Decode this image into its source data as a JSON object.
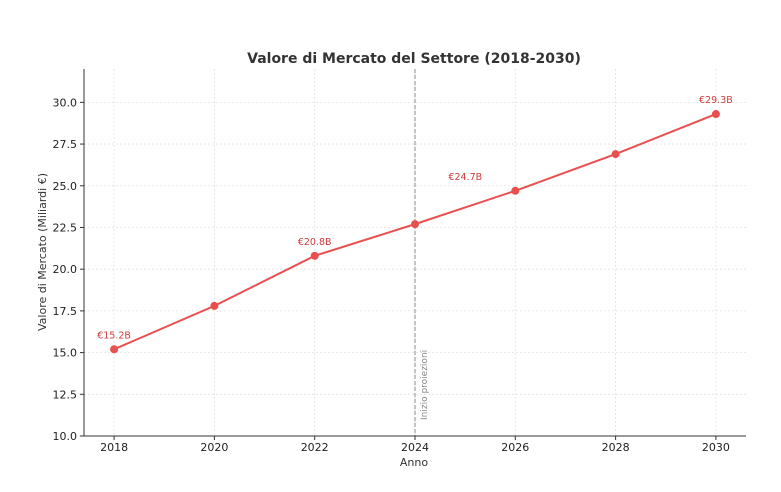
{
  "chart_data": {
    "type": "line",
    "title": "Valore di Mercato del Settore (2018-2030)",
    "xlabel": "Anno",
    "ylabel": "Valore di Mercato (Miliardi €)",
    "x": [
      2018,
      2020,
      2022,
      2024,
      2026,
      2028,
      2030
    ],
    "series": [
      {
        "values": [
          15.2,
          17.8,
          20.8,
          22.7,
          24.7,
          26.9,
          29.3
        ],
        "color": "#e8504f"
      }
    ],
    "xlim": [
      2017.4,
      2030.6
    ],
    "ylim": [
      10.0,
      32.0
    ],
    "x_ticks": [
      "2018",
      "2020",
      "2022",
      "2024",
      "2026",
      "2028",
      "2030"
    ],
    "y_ticks": [
      "10.0",
      "12.5",
      "15.0",
      "17.5",
      "20.0",
      "22.5",
      "25.0",
      "27.5",
      "30.0"
    ],
    "data_labels": [
      {
        "x": 2018,
        "y": 15.2,
        "text": "€15.2B"
      },
      {
        "x": 2022,
        "y": 20.8,
        "text": "€20.8B"
      },
      {
        "x": 2026,
        "y": 24.7,
        "text": "€24.7B"
      },
      {
        "x": 2030,
        "y": 29.3,
        "text": "€29.3B"
      }
    ],
    "annotations": [
      {
        "x": 2024,
        "text": "Inizio proiezioni",
        "style": "dashed-vertical-line",
        "color": "#888888"
      }
    ],
    "grid": true
  }
}
